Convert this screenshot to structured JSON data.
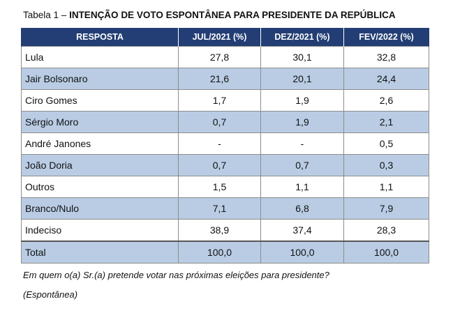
{
  "caption": {
    "prefix": "Tabela 1 – ",
    "title": "INTENÇÃO DE VOTO ESPONTÂNEA PARA PRESIDENTE DA REPÚBLICA"
  },
  "chart_data": {
    "type": "table",
    "title": "INTENÇÃO DE VOTO ESPONTÂNEA PARA PRESIDENTE DA REPÚBLICA",
    "columns": [
      "RESPOSTA",
      "JUL/2021 (%)",
      "DEZ/2021 (%)",
      "FEV/2022 (%)"
    ],
    "rows": [
      [
        "Lula",
        "27,8",
        "30,1",
        "32,8"
      ],
      [
        "Jair Bolsonaro",
        "21,6",
        "20,1",
        "24,4"
      ],
      [
        "Ciro Gomes",
        "1,7",
        "1,9",
        "2,6"
      ],
      [
        "Sérgio Moro",
        "0,7",
        "1,9",
        "2,1"
      ],
      [
        "André Janones",
        "-",
        "-",
        "0,5"
      ],
      [
        "João Doria",
        "0,7",
        "0,7",
        "0,3"
      ],
      [
        "Outros",
        "1,5",
        "1,1",
        "1,1"
      ],
      [
        "Branco/Nulo",
        "7,1",
        "6,8",
        "7,9"
      ],
      [
        "Indeciso",
        "38,9",
        "37,4",
        "28,3"
      ]
    ],
    "total": [
      "Total",
      "100,0",
      "100,0",
      "100,0"
    ]
  },
  "notes": {
    "question": "Em quem o(a) Sr.(a) pretende votar nas próximas eleições para presidente?",
    "type": "(Espontânea)"
  },
  "colors": {
    "header_bg": "#233e74",
    "header_text": "#ffffff",
    "row_shade": "#b9cce4",
    "border": "#8c8c8c"
  }
}
